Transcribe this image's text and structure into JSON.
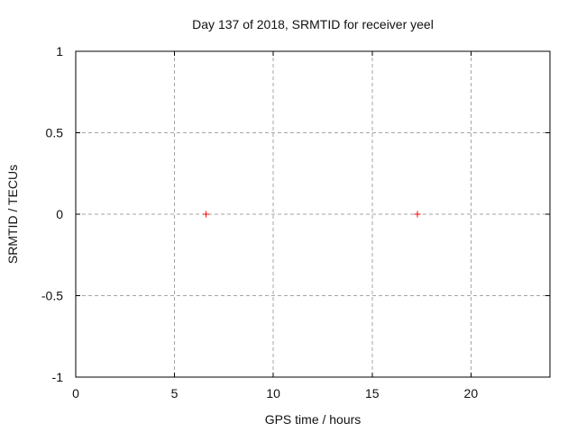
{
  "chart_data": {
    "type": "scatter",
    "title": "Day 137 of 2018, SRMTID for receiver yeel",
    "xlabel": "GPS time / hours",
    "ylabel": "SRMTID / TECUs",
    "xlim": [
      0,
      24
    ],
    "ylim": [
      -1,
      1
    ],
    "xticks": [
      0,
      5,
      10,
      15,
      20
    ],
    "yticks": [
      -1,
      -0.5,
      0,
      0.5,
      1
    ],
    "grid": true,
    "legend_position": "none",
    "colors": {
      "marker": "#ff0000",
      "grid": "#a5a5a5",
      "axis": "#000000",
      "text": "#111111",
      "background": "#ffffff"
    },
    "series": [
      {
        "name": "SRMTID",
        "marker": "plus",
        "color": "#ff0000",
        "points": [
          [
            6.6,
            0
          ],
          [
            17.3,
            0
          ]
        ]
      }
    ]
  }
}
